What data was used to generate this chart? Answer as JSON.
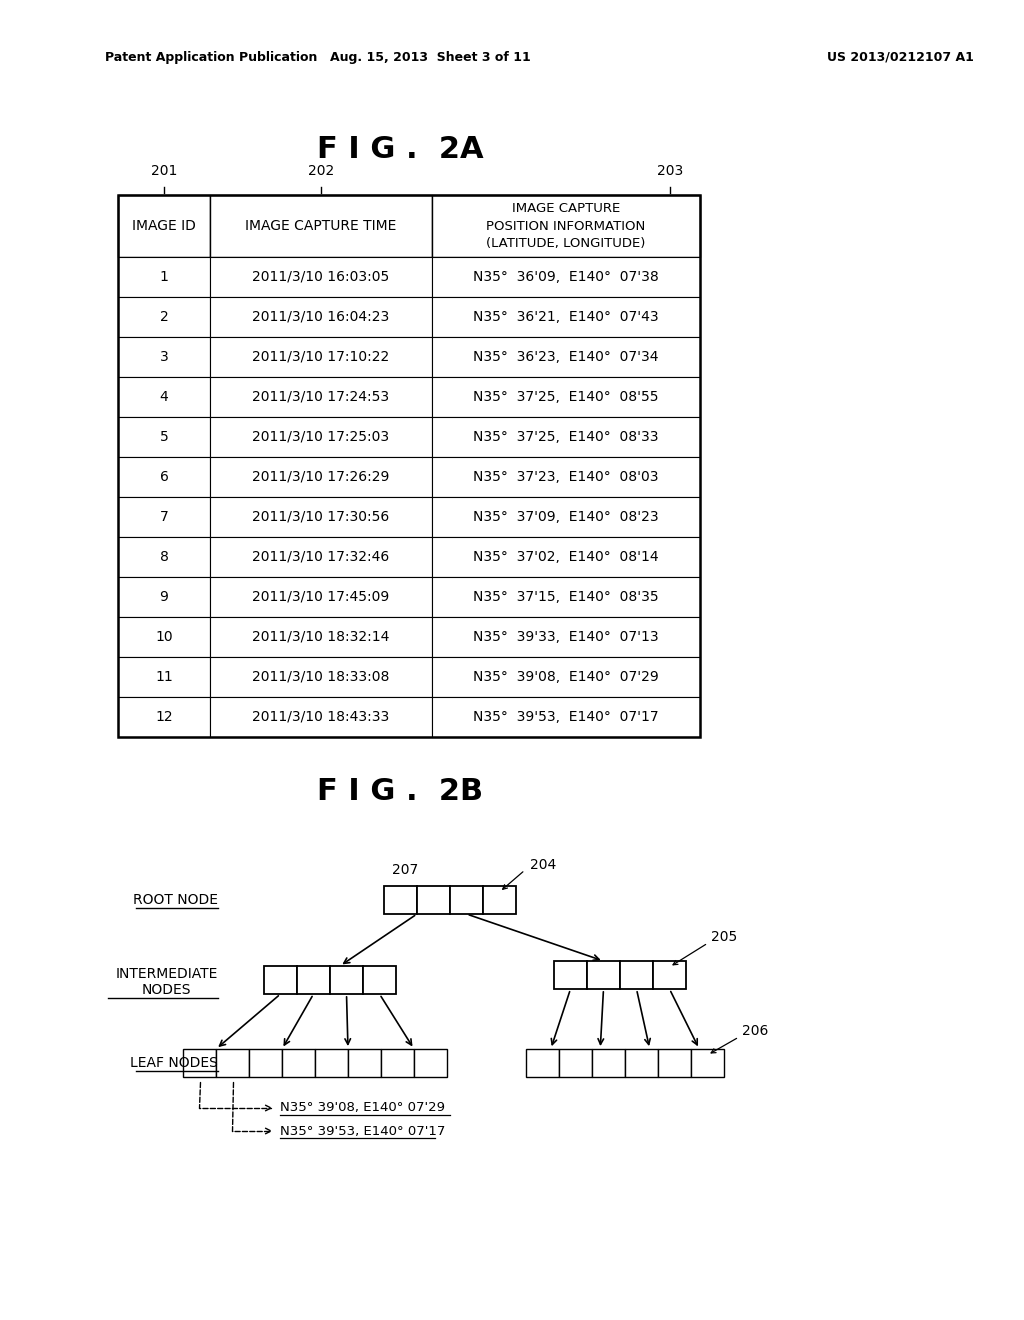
{
  "header_text_left": "Patent Application Publication",
  "header_text_mid": "Aug. 15, 2013  Sheet 3 of 11",
  "header_text_right": "US 2013/0212107 A1",
  "fig2a_title": "F I G .  2A",
  "fig2b_title": "F I G .  2B",
  "col_labels": [
    "IMAGE ID",
    "IMAGE CAPTURE TIME",
    "IMAGE CAPTURE\nPOSITION INFORMATION\n(LATITUDE, LONGITUDE)"
  ],
  "col_ref_nums": [
    "201",
    "202",
    "203"
  ],
  "table_data": [
    [
      "1",
      "2011/3/10 16:03:05",
      "N35°  36'09,  E140°  07'38"
    ],
    [
      "2",
      "2011/3/10 16:04:23",
      "N35°  36'21,  E140°  07'43"
    ],
    [
      "3",
      "2011/3/10 17:10:22",
      "N35°  36'23,  E140°  07'34"
    ],
    [
      "4",
      "2011/3/10 17:24:53",
      "N35°  37'25,  E140°  08'55"
    ],
    [
      "5",
      "2011/3/10 17:25:03",
      "N35°  37'25,  E140°  08'33"
    ],
    [
      "6",
      "2011/3/10 17:26:29",
      "N35°  37'23,  E140°  08'03"
    ],
    [
      "7",
      "2011/3/10 17:30:56",
      "N35°  37'09,  E140°  08'23"
    ],
    [
      "8",
      "2011/3/10 17:32:46",
      "N35°  37'02,  E140°  08'14"
    ],
    [
      "9",
      "2011/3/10 17:45:09",
      "N35°  37'15,  E140°  08'35"
    ],
    [
      "10",
      "2011/3/10 18:32:14",
      "N35°  39'33,  E140°  07'13"
    ],
    [
      "11",
      "2011/3/10 18:33:08",
      "N35°  39'08,  E140°  07'29"
    ],
    [
      "12",
      "2011/3/10 18:43:33",
      "N35°  39'53,  E140°  07'17"
    ]
  ],
  "ref_204": "204",
  "ref_205": "205",
  "ref_206": "206",
  "ref_207": "207",
  "label_root": "ROOT NODE",
  "label_inter": "INTERMEDIATE\nNODES",
  "label_leaf": "LEAF NODES",
  "annotation1": "N35° 39'08, E140° 07'29",
  "annotation2": "N35° 39'53, E140° 07'17",
  "bg_color": "#ffffff",
  "line_color": "#000000",
  "text_color": "#000000"
}
